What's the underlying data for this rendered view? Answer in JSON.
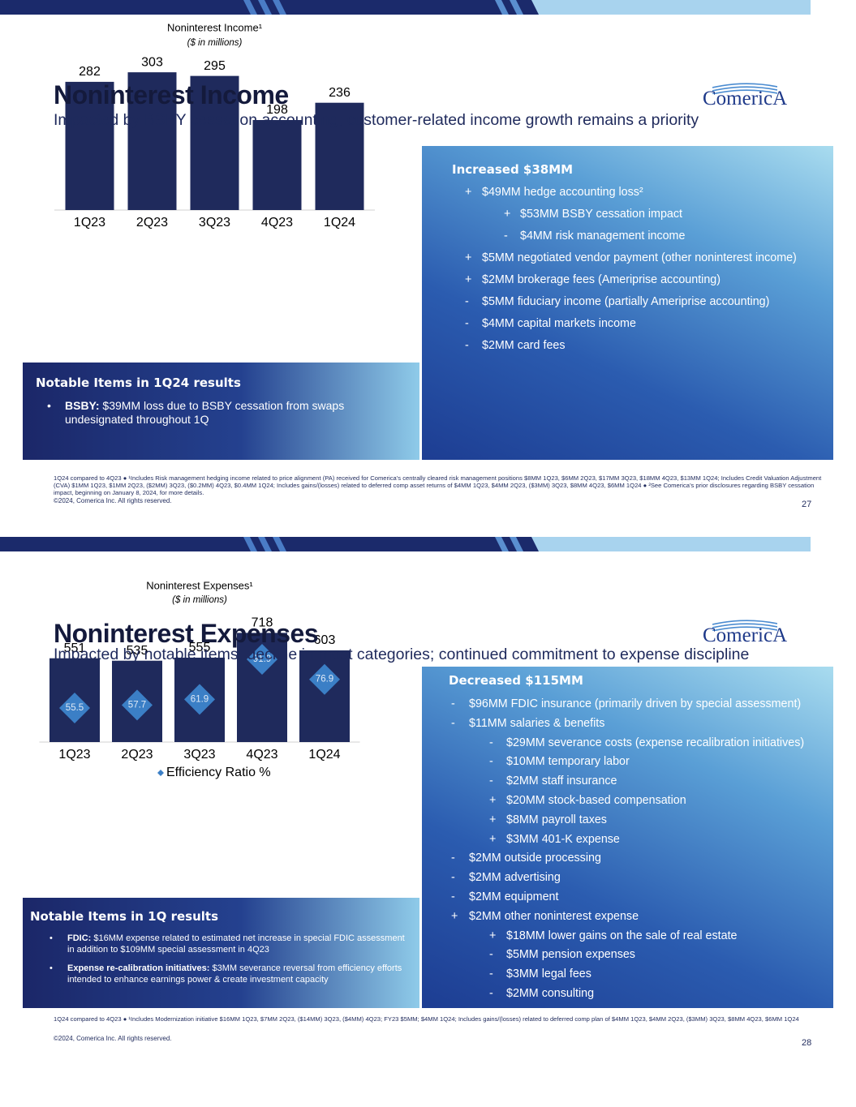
{
  "slides": [
    {
      "title": "Noninterest Income",
      "subtitle": "Impacted by BSBY cessation accounting; customer-related income growth remains a priority",
      "logo": "ComericA",
      "chart_data": {
        "type": "bar",
        "title": "Noninterest Income¹",
        "subtitle": "($ in millions)",
        "categories": [
          "1Q23",
          "2Q23",
          "3Q23",
          "4Q23",
          "1Q24"
        ],
        "values": [
          282,
          303,
          295,
          198,
          236
        ],
        "color": "#1f2a5c",
        "ylim": [
          0,
          330
        ]
      },
      "panel": {
        "header": "Increased $38MM",
        "items": [
          {
            "sign": "+",
            "text": "$49MM hedge accounting loss²",
            "subitems": [
              {
                "sign": "+",
                "text": "$53MM BSBY cessation impact"
              },
              {
                "sign": "-",
                "text": "$4MM risk management income"
              }
            ]
          },
          {
            "sign": "+",
            "text": "$5MM negotiated vendor payment (other noninterest income)"
          },
          {
            "sign": "+",
            "text": "$2MM brokerage fees (Ameriprise accounting)"
          },
          {
            "sign": "-",
            "text": "$5MM fiduciary income (partially Ameriprise accounting)"
          },
          {
            "sign": "-",
            "text": "$4MM capital markets income"
          },
          {
            "sign": "-",
            "text": "$2MM card fees"
          }
        ]
      },
      "notable": {
        "title": "Notable Items in 1Q24 results",
        "items": [
          {
            "label": "BSBY:",
            "text": "$39MM loss due to BSBY cessation from swaps undesignated throughout 1Q"
          }
        ]
      },
      "footnote": "1Q24 compared to 4Q23 ● ¹Includes Risk management hedging income related to price alignment (PA) received for Comerica’s centrally cleared risk management positions $8MM 1Q23, $6MM 2Q23, $17MM 3Q23, $18MM 4Q23, $13MM 1Q24; Includes Credit Valuation Adjustment (CVA) $1MM 1Q23, $1MM 2Q23, ($2MM) 3Q23, ($0.2MM) 4Q23, $0.4MM 1Q24; Includes gains/(losses) related to deferred comp asset returns of $4MM 1Q23, $4MM 2Q23, ($3MM) 3Q23, $8MM 4Q23, $6MM 1Q24 ● ²See Comerica’s prior disclosures regarding BSBY cessation impact, beginning on January 8, 2024, for more details.",
      "copyright": "©2024, Comerica Inc. All rights reserved.",
      "page_number": "27"
    },
    {
      "title": "Noninterest Expenses",
      "subtitle": "Impacted by notable items; decline in most categories; continued commitment to expense discipline",
      "logo": "ComericA",
      "chart_data": {
        "type": "bar",
        "title": "Noninterest Expenses¹",
        "subtitle": "($ in millions)",
        "categories": [
          "1Q23",
          "2Q23",
          "3Q23",
          "4Q23",
          "1Q24"
        ],
        "values": [
          551,
          535,
          555,
          718,
          603
        ],
        "color": "#1f2a5c",
        "ylim": [
          0,
          800
        ],
        "series": [
          {
            "name": "Efficiency Ratio %",
            "color": "#3b7fc6",
            "values": [
              55.5,
              57.7,
              61.9,
              91.9,
              76.9
            ],
            "axis": "y2"
          }
        ],
        "y2lim": [
          30,
          121
        ]
      },
      "panel": {
        "header": "Decreased $115MM",
        "items": [
          {
            "sign": "-",
            "text": "$96MM FDIC insurance (primarily driven by special assessment)"
          },
          {
            "sign": "-",
            "text": "$11MM salaries & benefits",
            "subitems": [
              {
                "sign": "-",
                "text": "$29MM severance costs (expense recalibration initiatives)"
              },
              {
                "sign": "-",
                "text": "$10MM temporary labor"
              },
              {
                "sign": "-",
                "text": "$2MM staff insurance"
              },
              {
                "sign": "+",
                "text": "$20MM stock-based compensation"
              },
              {
                "sign": "+",
                "text": "$8MM payroll taxes"
              },
              {
                "sign": "+",
                "text": "$3MM 401-K expense"
              }
            ]
          },
          {
            "sign": "-",
            "text": "$2MM outside processing"
          },
          {
            "sign": "-",
            "text": "$2MM advertising"
          },
          {
            "sign": "-",
            "text": "$2MM equipment"
          },
          {
            "sign": "+",
            "text": "$2MM other noninterest expense",
            "subitems": [
              {
                "sign": "+",
                "text": "$18MM lower gains on the sale of real estate"
              },
              {
                "sign": "-",
                "text": "$5MM pension expenses"
              },
              {
                "sign": "-",
                "text": "$3MM legal fees"
              },
              {
                "sign": "-",
                "text": "$2MM consulting"
              }
            ]
          }
        ]
      },
      "notable": {
        "title": "Notable Items in 1Q results",
        "items": [
          {
            "label": "FDIC:",
            "text": "$16MM expense related to estimated net increase in special FDIC assessment in addition to $109MM special assessment in 4Q23"
          },
          {
            "label": "Expense re-calibration initiatives:",
            "text": "$3MM severance reversal from efficiency efforts intended to enhance earnings power & create investment capacity"
          }
        ]
      },
      "footnote": "1Q24 compared to 4Q23 ● ¹Includes Modernization initiative $16MM 1Q23, $7MM 2Q23, ($14MM) 3Q23, ($4MM) 4Q23; FY23 $5MM; $4MM 1Q24; Includes gains/(losses) related to deferred comp plan of $4MM 1Q23, $4MM 2Q23, ($3MM) 3Q23, $8MM 4Q23, $6MM 1Q24",
      "copyright": "©2024, Comerica Inc. All rights reserved.",
      "page_number": "28"
    }
  ]
}
